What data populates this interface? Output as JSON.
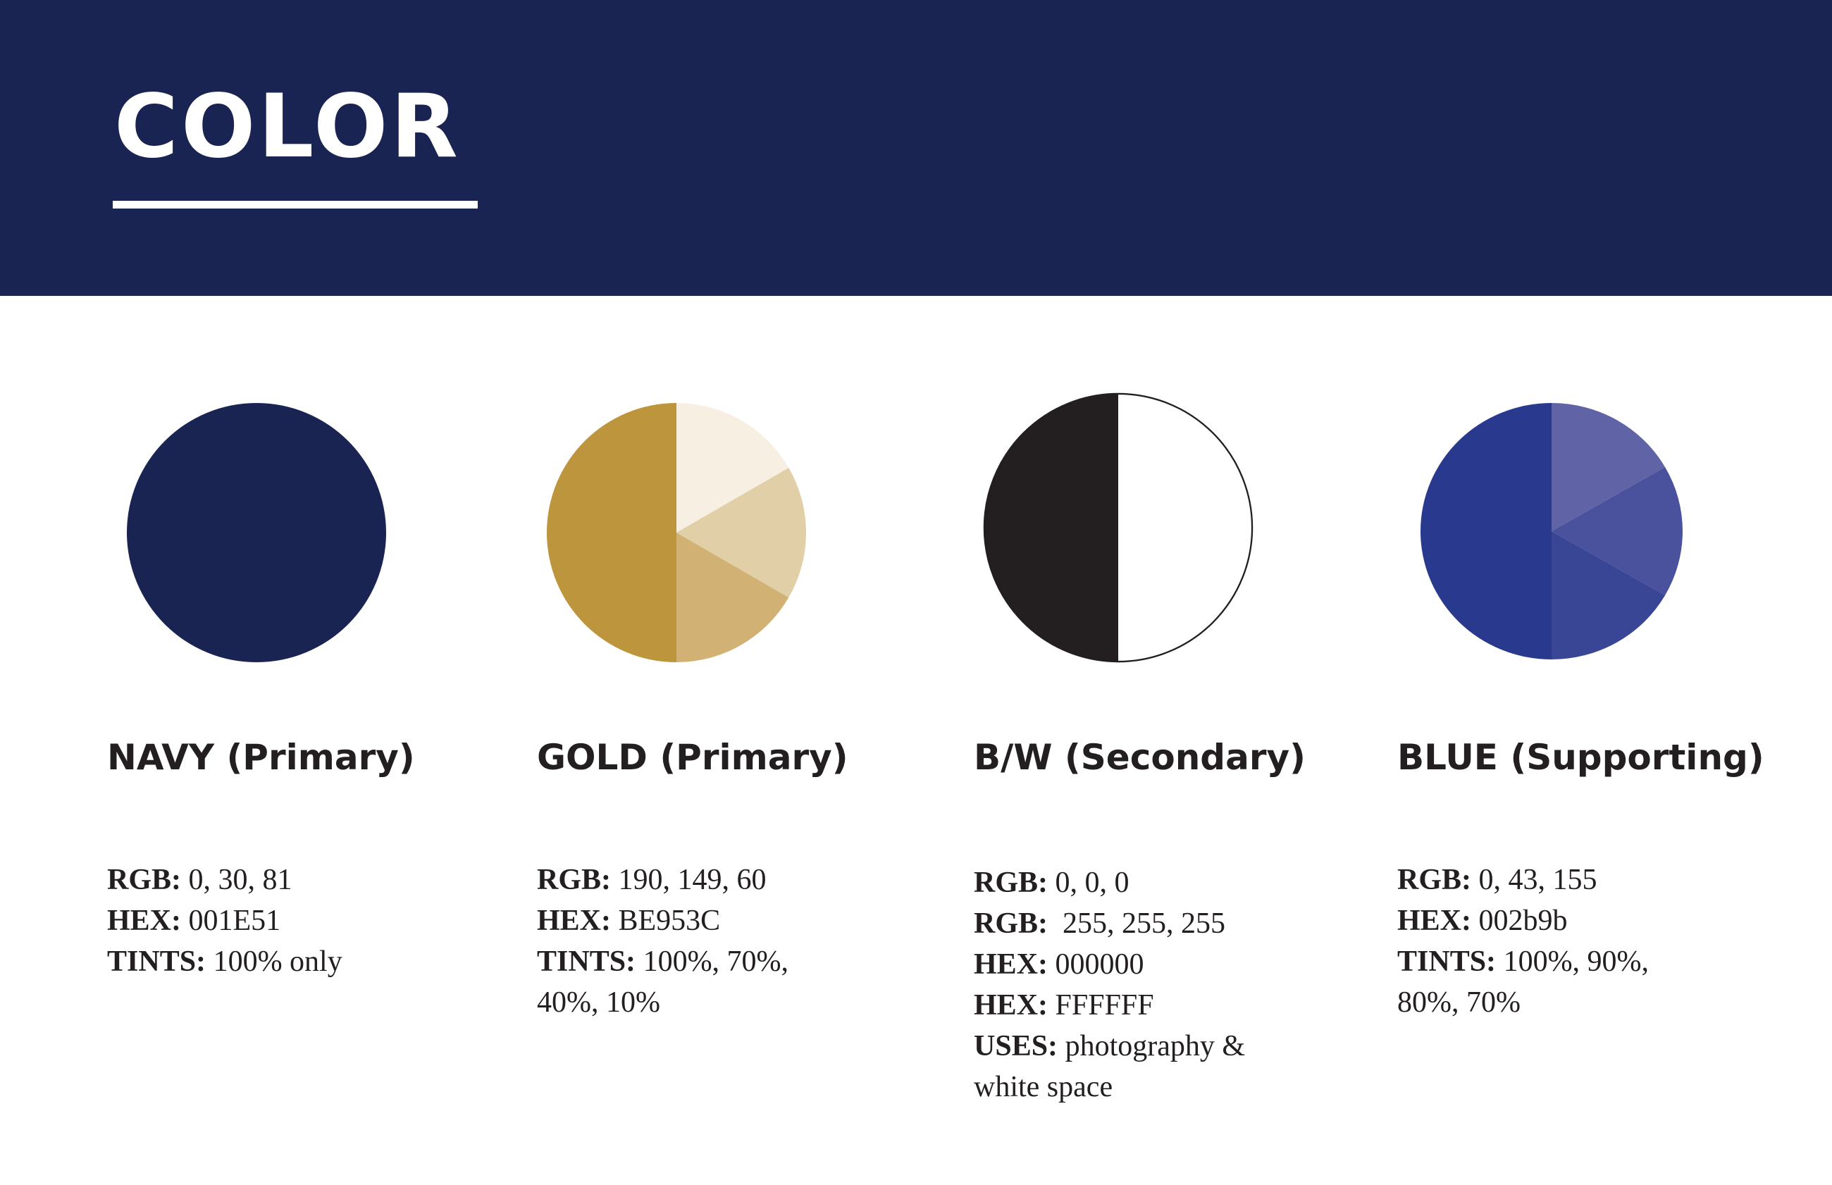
{
  "page": {
    "title": "COLOR"
  },
  "palettes": [
    {
      "name": "NAVY (Primary)",
      "swatch_colors": [
        "#1a2452"
      ],
      "specs": [
        {
          "key": "RGB:",
          "value": "0, 30, 81"
        },
        {
          "key": "HEX:",
          "value": "001E51"
        },
        {
          "key": "TINTS:",
          "value": "100% only"
        }
      ]
    },
    {
      "name": "GOLD (Primary)",
      "swatch_colors": [
        "#bd953c",
        "#f6efe2",
        "#e1cfa8",
        "#d1b274"
      ],
      "specs": [
        {
          "key": "RGB:",
          "value": "190, 149, 60"
        },
        {
          "key": "HEX:",
          "value": "BE953C"
        },
        {
          "key": "TINTS:",
          "value": "100%, 70%, 40%, 10%"
        }
      ]
    },
    {
      "name": "B/W (Secondary)",
      "swatch_colors": [
        "#231f20",
        "#ffffff"
      ],
      "specs": [
        {
          "key": "RGB:",
          "value": "0, 0, 0"
        },
        {
          "key": "RGB:",
          "value": "255, 255, 255"
        },
        {
          "key": "HEX:",
          "value": "000000"
        },
        {
          "key": "HEX:",
          "value": "FFFFFF"
        },
        {
          "key": "USES:",
          "value": "photography & white space"
        }
      ]
    },
    {
      "name": "BLUE (Supporting)",
      "swatch_colors": [
        "#29398e",
        "#6063a6",
        "#4a519d",
        "#394595"
      ],
      "specs": [
        {
          "key": "RGB:",
          "value": "0, 43, 155"
        },
        {
          "key": "HEX:",
          "value": "002b9b"
        },
        {
          "key": "TINTS:",
          "value": "100%, 90%, 80%, 70%"
        }
      ]
    }
  ]
}
